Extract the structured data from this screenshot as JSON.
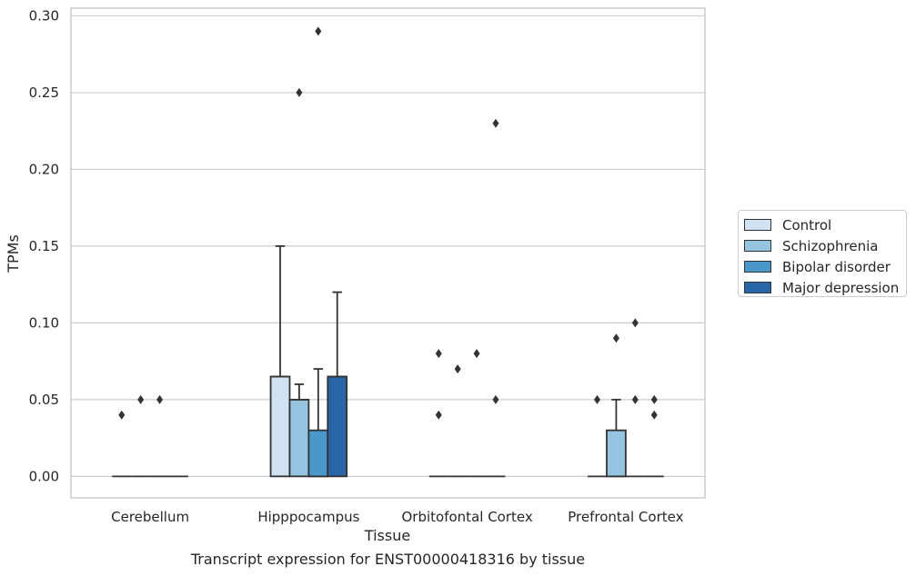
{
  "caption": "Transcript expression for ENST00000418316 by tissue",
  "chart_data": {
    "type": "box",
    "xlabel": "Tissue",
    "ylabel": "TPMs",
    "ylim": [
      -0.014,
      0.305
    ],
    "yticks": [
      0.0,
      0.05,
      0.1,
      0.15,
      0.2,
      0.25,
      0.3
    ],
    "ytick_labels": [
      "0.00",
      "0.05",
      "0.10",
      "0.15",
      "0.20",
      "0.25",
      "0.30"
    ],
    "grid": "horizontal",
    "legend_position": "right",
    "categories": [
      "Cerebellum",
      "Hipppocampus",
      "Orbitofontal Cortex",
      "Prefrontal Cortex"
    ],
    "series": [
      {
        "name": "Control",
        "color": "#d0e1f2",
        "boxes": [
          {
            "q1": 0,
            "median": 0,
            "q3": 0,
            "whisker_low": 0,
            "whisker_high": 0,
            "outliers": [
              0.04
            ]
          },
          {
            "q1": 0,
            "median": 0.065,
            "q3": 0.065,
            "whisker_low": 0,
            "whisker_high": 0.15,
            "outliers": []
          },
          {
            "q1": 0,
            "median": 0,
            "q3": 0,
            "whisker_low": 0,
            "whisker_high": 0,
            "outliers": [
              0.04,
              0.08
            ]
          },
          {
            "q1": 0,
            "median": 0,
            "q3": 0,
            "whisker_low": 0,
            "whisker_high": 0,
            "outliers": [
              0.05
            ]
          }
        ]
      },
      {
        "name": "Schizophrenia",
        "color": "#94c4df",
        "boxes": [
          {
            "q1": 0,
            "median": 0,
            "q3": 0,
            "whisker_low": 0,
            "whisker_high": 0,
            "outliers": [
              0.05
            ]
          },
          {
            "q1": 0,
            "median": 0.05,
            "q3": 0.05,
            "whisker_low": 0,
            "whisker_high": 0.06,
            "outliers": [
              0.25
            ]
          },
          {
            "q1": 0,
            "median": 0,
            "q3": 0,
            "whisker_low": 0,
            "whisker_high": 0,
            "outliers": [
              0.07
            ]
          },
          {
            "q1": 0,
            "median": 0,
            "q3": 0.03,
            "whisker_low": 0,
            "whisker_high": 0.05,
            "outliers": [
              0.09
            ]
          }
        ]
      },
      {
        "name": "Bipolar disorder",
        "color": "#4a98c9",
        "boxes": [
          {
            "q1": 0,
            "median": 0,
            "q3": 0,
            "whisker_low": 0,
            "whisker_high": 0,
            "outliers": [
              0.05
            ]
          },
          {
            "q1": 0,
            "median": 0,
            "q3": 0.03,
            "whisker_low": 0,
            "whisker_high": 0.07,
            "outliers": [
              0.29
            ]
          },
          {
            "q1": 0,
            "median": 0,
            "q3": 0,
            "whisker_low": 0,
            "whisker_high": 0,
            "outliers": [
              0.08
            ]
          },
          {
            "q1": 0,
            "median": 0,
            "q3": 0,
            "whisker_low": 0,
            "whisker_high": 0,
            "outliers": [
              0.05,
              0.1
            ]
          }
        ]
      },
      {
        "name": "Major depression",
        "color": "#2866a7",
        "boxes": [
          {
            "q1": 0,
            "median": 0,
            "q3": 0,
            "whisker_low": 0,
            "whisker_high": 0,
            "outliers": []
          },
          {
            "q1": 0,
            "median": 0.065,
            "q3": 0.065,
            "whisker_low": 0,
            "whisker_high": 0.12,
            "outliers": []
          },
          {
            "q1": 0,
            "median": 0,
            "q3": 0,
            "whisker_low": 0,
            "whisker_high": 0,
            "outliers": [
              0.05,
              0.23
            ]
          },
          {
            "q1": 0,
            "median": 0,
            "q3": 0,
            "whisker_low": 0,
            "whisker_high": 0,
            "outliers": [
              0.04,
              0.05
            ]
          }
        ]
      }
    ]
  }
}
